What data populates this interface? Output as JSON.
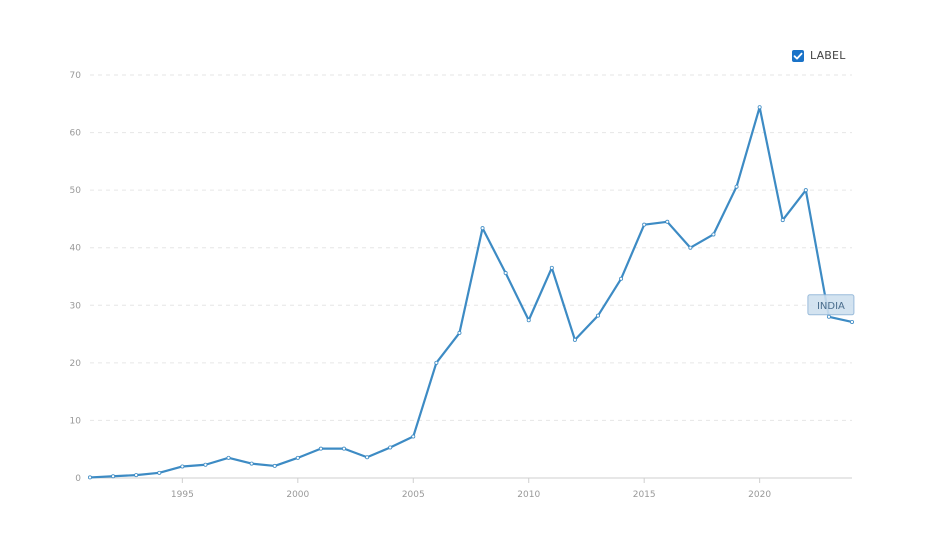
{
  "legend_toggle": {
    "label": "LABEL",
    "checked": true
  },
  "colors": {
    "line": "#3d8bc4",
    "grid": "#e6e6e6",
    "checkbox": "#1a73c8",
    "label_bg": "#cfe0ef",
    "label_border": "#8fb4d6"
  },
  "chart_data": {
    "type": "line",
    "xlim": [
      1991,
      2024
    ],
    "ylim": [
      0,
      70
    ],
    "yticks": [
      0,
      10,
      20,
      30,
      40,
      50,
      60,
      70
    ],
    "xticks": [
      1995,
      2000,
      2005,
      2010,
      2015,
      2020
    ],
    "series": [
      {
        "name": "INDIA",
        "x": [
          1991,
          1992,
          1993,
          1994,
          1995,
          1996,
          1997,
          1998,
          1999,
          2000,
          2001,
          2002,
          2003,
          2004,
          2005,
          2006,
          2007,
          2008,
          2009,
          2010,
          2011,
          2012,
          2013,
          2014,
          2015,
          2016,
          2017,
          2018,
          2019,
          2020,
          2021,
          2022,
          2023,
          2024
        ],
        "values": [
          0.1,
          0.3,
          0.5,
          0.9,
          2.0,
          2.3,
          3.5,
          2.5,
          2.1,
          3.5,
          5.1,
          5.1,
          3.6,
          5.3,
          7.2,
          20.0,
          25.2,
          43.4,
          35.6,
          27.4,
          36.5,
          24.0,
          28.2,
          34.6,
          44.0,
          44.5,
          40.0,
          42.3,
          50.6,
          64.4,
          44.8,
          50.0,
          28.0,
          27.1
        ]
      }
    ]
  }
}
